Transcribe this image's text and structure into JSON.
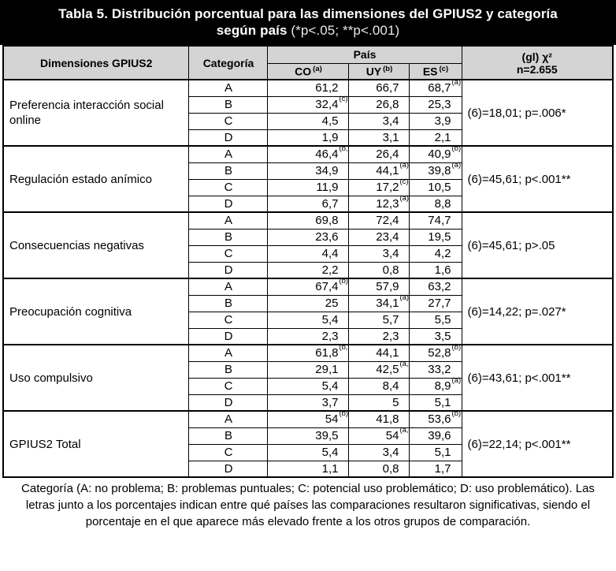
{
  "title": {
    "line1": "Tabla 5. Distribución porcentual para las dimensiones del GPIUS2 y categoría",
    "line2_bold": "según país",
    "line2_note": "(*p<.05; **p<.001)"
  },
  "header": {
    "dimensions": "Dimensiones GPIUS2",
    "category": "Categoría",
    "country_group": "País",
    "countries": [
      {
        "code": "CO",
        "sup": "(a)"
      },
      {
        "code": "UY",
        "sup": "(b)"
      },
      {
        "code": "ES",
        "sup": "(c)"
      }
    ],
    "chi_line1": "(gl) χ²",
    "chi_line2": "n=2.655"
  },
  "groups": [
    {
      "dimension": "Preferencia interacción social online",
      "chi": "(6)=18,01; p=.006*",
      "rows": [
        {
          "category": "A",
          "cells": [
            {
              "v": "61,2",
              "sup": ""
            },
            {
              "v": "66,7",
              "sup": ""
            },
            {
              "v": "68,7",
              "sup": "(a)"
            }
          ]
        },
        {
          "category": "B",
          "cells": [
            {
              "v": "32,4",
              "sup": "(c)"
            },
            {
              "v": "26,8",
              "sup": ""
            },
            {
              "v": "25,3",
              "sup": ""
            }
          ]
        },
        {
          "category": "C",
          "cells": [
            {
              "v": "4,5",
              "sup": ""
            },
            {
              "v": "3,4",
              "sup": ""
            },
            {
              "v": "3,9",
              "sup": ""
            }
          ]
        },
        {
          "category": "D",
          "cells": [
            {
              "v": "1,9",
              "sup": ""
            },
            {
              "v": "3,1",
              "sup": ""
            },
            {
              "v": "2,1",
              "sup": ""
            }
          ]
        }
      ]
    },
    {
      "dimension": "Regulación estado anímico",
      "chi": "(6)=45,61; p<.001**",
      "rows": [
        {
          "category": "A",
          "cells": [
            {
              "v": "46,4",
              "sup": "(b,c)"
            },
            {
              "v": "26,4",
              "sup": ""
            },
            {
              "v": "40,9",
              "sup": "(b)"
            }
          ]
        },
        {
          "category": "B",
          "cells": [
            {
              "v": "34,9",
              "sup": ""
            },
            {
              "v": "44,1",
              "sup": "(a)"
            },
            {
              "v": "39,8",
              "sup": "(a)"
            }
          ]
        },
        {
          "category": "C",
          "cells": [
            {
              "v": "11,9",
              "sup": ""
            },
            {
              "v": "17,2",
              "sup": "(c)"
            },
            {
              "v": "10,5",
              "sup": ""
            }
          ]
        },
        {
          "category": "D",
          "cells": [
            {
              "v": "6,7",
              "sup": ""
            },
            {
              "v": "12,3",
              "sup": "(a)"
            },
            {
              "v": "8,8",
              "sup": ""
            }
          ]
        }
      ]
    },
    {
      "dimension": "Consecuencias negativas",
      "chi": "(6)=45,61; p>.05",
      "rows": [
        {
          "category": "A",
          "cells": [
            {
              "v": "69,8",
              "sup": ""
            },
            {
              "v": "72,4",
              "sup": ""
            },
            {
              "v": "74,7",
              "sup": ""
            }
          ]
        },
        {
          "category": "B",
          "cells": [
            {
              "v": "23,6",
              "sup": ""
            },
            {
              "v": "23,4",
              "sup": ""
            },
            {
              "v": "19,5",
              "sup": ""
            }
          ]
        },
        {
          "category": "C",
          "cells": [
            {
              "v": "4,4",
              "sup": ""
            },
            {
              "v": "3,4",
              "sup": ""
            },
            {
              "v": "4,2",
              "sup": ""
            }
          ]
        },
        {
          "category": "D",
          "cells": [
            {
              "v": "2,2",
              "sup": ""
            },
            {
              "v": "0,8",
              "sup": ""
            },
            {
              "v": "1,6",
              "sup": ""
            }
          ]
        }
      ]
    },
    {
      "dimension": "Preocupación cognitiva",
      "chi": "(6)=14,22; p=.027*",
      "rows": [
        {
          "category": "A",
          "cells": [
            {
              "v": "67,4",
              "sup": "(b)"
            },
            {
              "v": "57,9",
              "sup": ""
            },
            {
              "v": "63,2",
              "sup": ""
            }
          ]
        },
        {
          "category": "B",
          "cells": [
            {
              "v": "25",
              "sup": ""
            },
            {
              "v": "34,1",
              "sup": "(a)"
            },
            {
              "v": "27,7",
              "sup": ""
            }
          ]
        },
        {
          "category": "C",
          "cells": [
            {
              "v": "5,4",
              "sup": ""
            },
            {
              "v": "5,7",
              "sup": ""
            },
            {
              "v": "5,5",
              "sup": ""
            }
          ]
        },
        {
          "category": "D",
          "cells": [
            {
              "v": "2,3",
              "sup": ""
            },
            {
              "v": "2,3",
              "sup": ""
            },
            {
              "v": "3,5",
              "sup": ""
            }
          ]
        }
      ]
    },
    {
      "dimension": "Uso compulsivo",
      "chi": "(6)=43,61; p<.001**",
      "rows": [
        {
          "category": "A",
          "cells": [
            {
              "v": "61,8",
              "sup": "(b,c)"
            },
            {
              "v": "44,1",
              "sup": ""
            },
            {
              "v": "52,8",
              "sup": "(b)"
            }
          ]
        },
        {
          "category": "B",
          "cells": [
            {
              "v": "29,1",
              "sup": ""
            },
            {
              "v": "42,5",
              "sup": "(a,c)"
            },
            {
              "v": "33,2",
              "sup": ""
            }
          ]
        },
        {
          "category": "C",
          "cells": [
            {
              "v": "5,4",
              "sup": ""
            },
            {
              "v": "8,4",
              "sup": ""
            },
            {
              "v": "8,9",
              "sup": "(a)"
            }
          ]
        },
        {
          "category": "D",
          "cells": [
            {
              "v": "3,7",
              "sup": ""
            },
            {
              "v": "5",
              "sup": ""
            },
            {
              "v": "5,1",
              "sup": ""
            }
          ]
        }
      ]
    },
    {
      "dimension": "GPIUS2 Total",
      "chi": "(6)=22,14; p<.001**",
      "rows": [
        {
          "category": "A",
          "cells": [
            {
              "v": "54",
              "sup": "(b)"
            },
            {
              "v": "41,8",
              "sup": ""
            },
            {
              "v": "53,6",
              "sup": "(b)"
            }
          ]
        },
        {
          "category": "B",
          "cells": [
            {
              "v": "39,5",
              "sup": ""
            },
            {
              "v": "54",
              "sup": "(a,c)"
            },
            {
              "v": "39,6",
              "sup": ""
            }
          ]
        },
        {
          "category": "C",
          "cells": [
            {
              "v": "5,4",
              "sup": ""
            },
            {
              "v": "3,4",
              "sup": ""
            },
            {
              "v": "5,1",
              "sup": ""
            }
          ]
        },
        {
          "category": "D",
          "cells": [
            {
              "v": "1,1",
              "sup": ""
            },
            {
              "v": "0,8",
              "sup": ""
            },
            {
              "v": "1,7",
              "sup": ""
            }
          ]
        }
      ]
    }
  ],
  "footnote_lines": [
    "Categoría (A: no problema; B: problemas puntuales; C: potencial uso problemático; D: uso problemático). Las",
    "letras junto a los porcentajes indican entre qué países las comparaciones resultaron significativas, siendo el",
    "porcentaje en el que aparece más elevado frente a los otros grupos de comparación."
  ],
  "colors": {
    "title_bg": "#000000",
    "title_text": "#ffffff",
    "header_bg": "#d4d4d4",
    "border": "#000000"
  }
}
